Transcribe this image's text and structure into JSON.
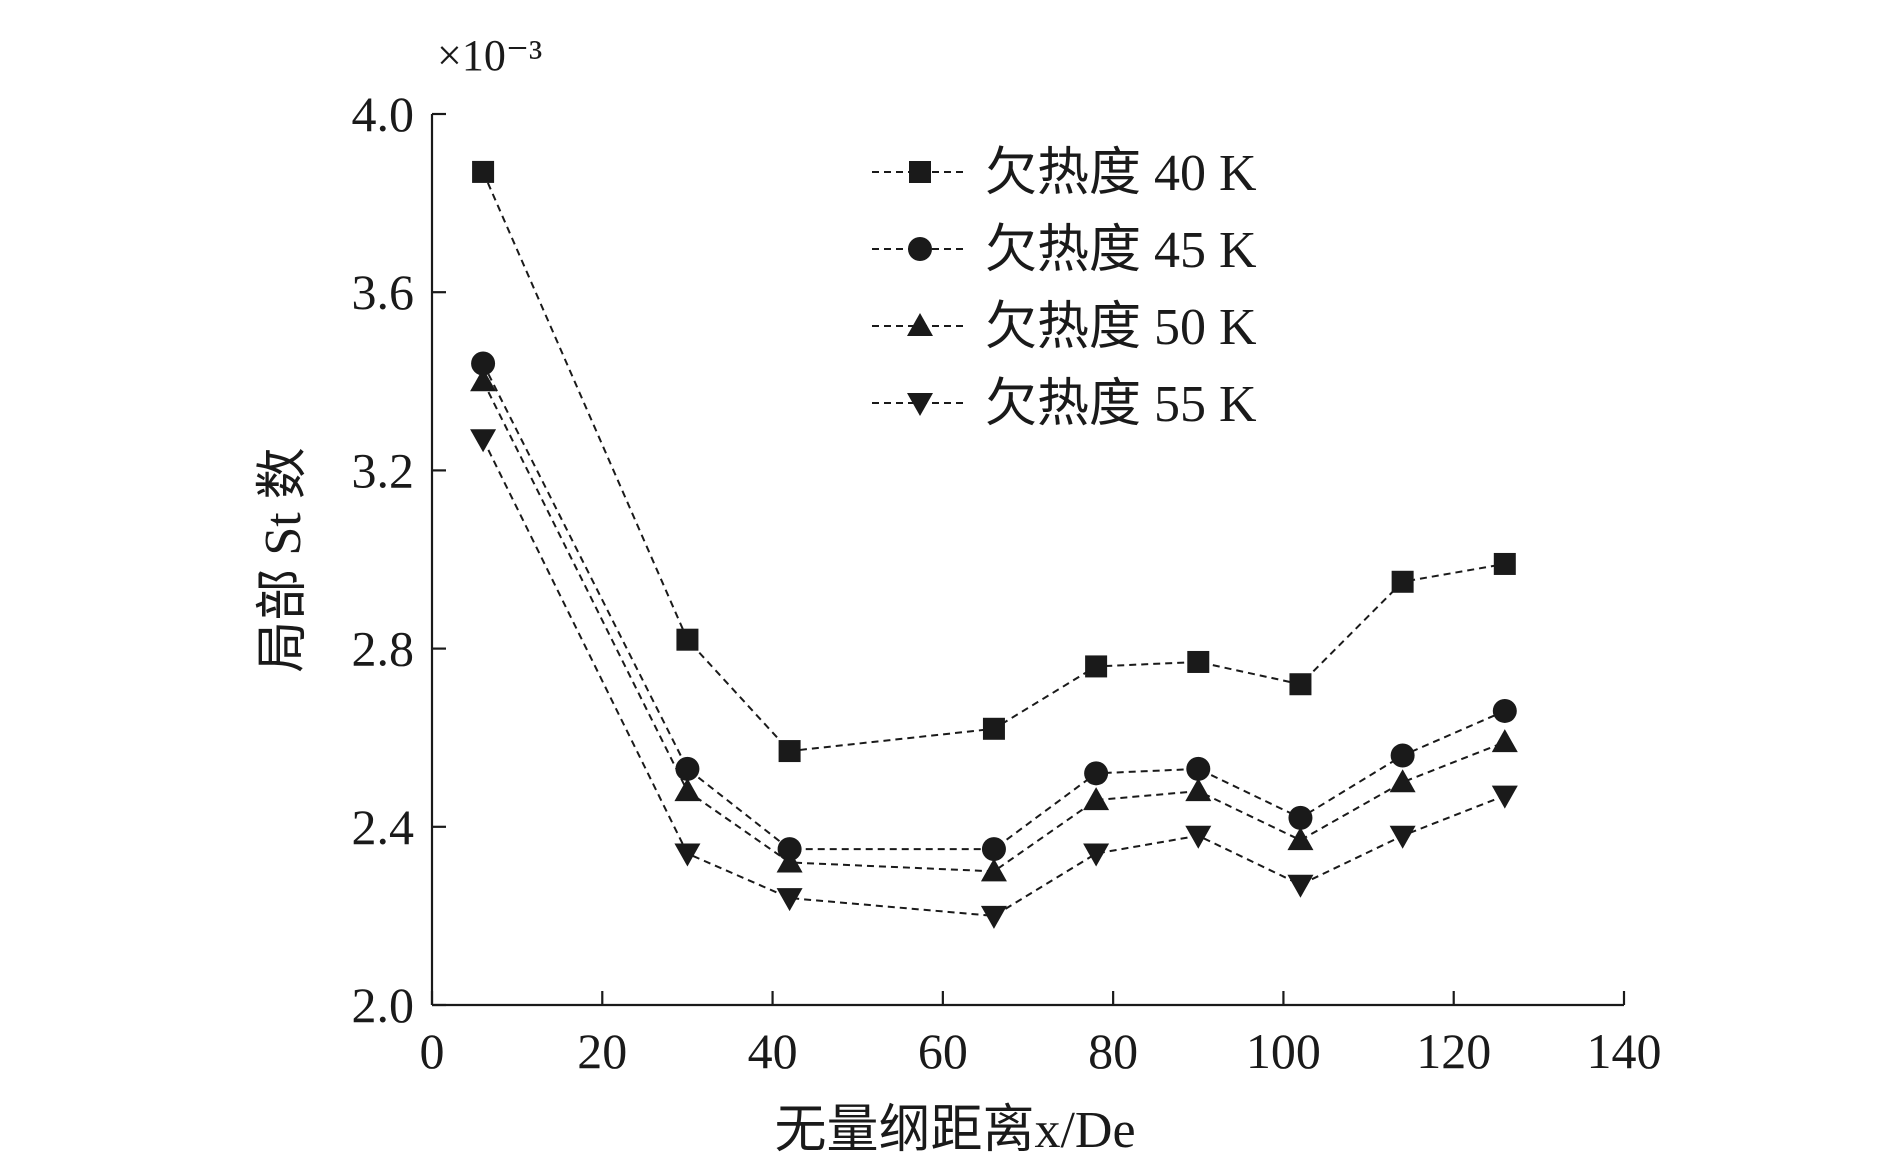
{
  "chart_data": {
    "type": "line",
    "title": "",
    "xlabel": "无量纲距离x/De",
    "ylabel": "局部 St 数",
    "y_multiplier": "×10⁻³",
    "xlim": [
      0,
      140
    ],
    "ylim": [
      2.0,
      4.0
    ],
    "xticks": [
      0,
      20,
      40,
      60,
      80,
      100,
      120,
      140
    ],
    "xtick_labels": [
      "0",
      "20",
      "40",
      "60",
      "80",
      "100",
      "120",
      "140"
    ],
    "yticks": [
      2.0,
      2.4,
      2.8,
      3.2,
      3.6,
      4.0
    ],
    "ytick_labels": [
      "2.0",
      "2.4",
      "2.8",
      "3.2",
      "3.6",
      "4.0"
    ],
    "legend_position": "top-right",
    "x": [
      6,
      30,
      42,
      66,
      78,
      90,
      102,
      114,
      126
    ],
    "series": [
      {
        "name": "欠热度 40 K",
        "marker": "square",
        "values": [
          3.87,
          2.82,
          2.57,
          2.62,
          2.76,
          2.77,
          2.72,
          2.95,
          2.99
        ]
      },
      {
        "name": "欠热度 45 K",
        "marker": "circle",
        "values": [
          3.44,
          2.53,
          2.35,
          2.35,
          2.52,
          2.53,
          2.42,
          2.56,
          2.66
        ]
      },
      {
        "name": "欠热度 50 K",
        "marker": "triangle-up",
        "values": [
          3.4,
          2.48,
          2.32,
          2.3,
          2.46,
          2.48,
          2.37,
          2.5,
          2.59
        ]
      },
      {
        "name": "欠热度 55 K",
        "marker": "triangle-down",
        "values": [
          3.27,
          2.34,
          2.24,
          2.2,
          2.34,
          2.38,
          2.27,
          2.38,
          2.47
        ]
      }
    ]
  }
}
